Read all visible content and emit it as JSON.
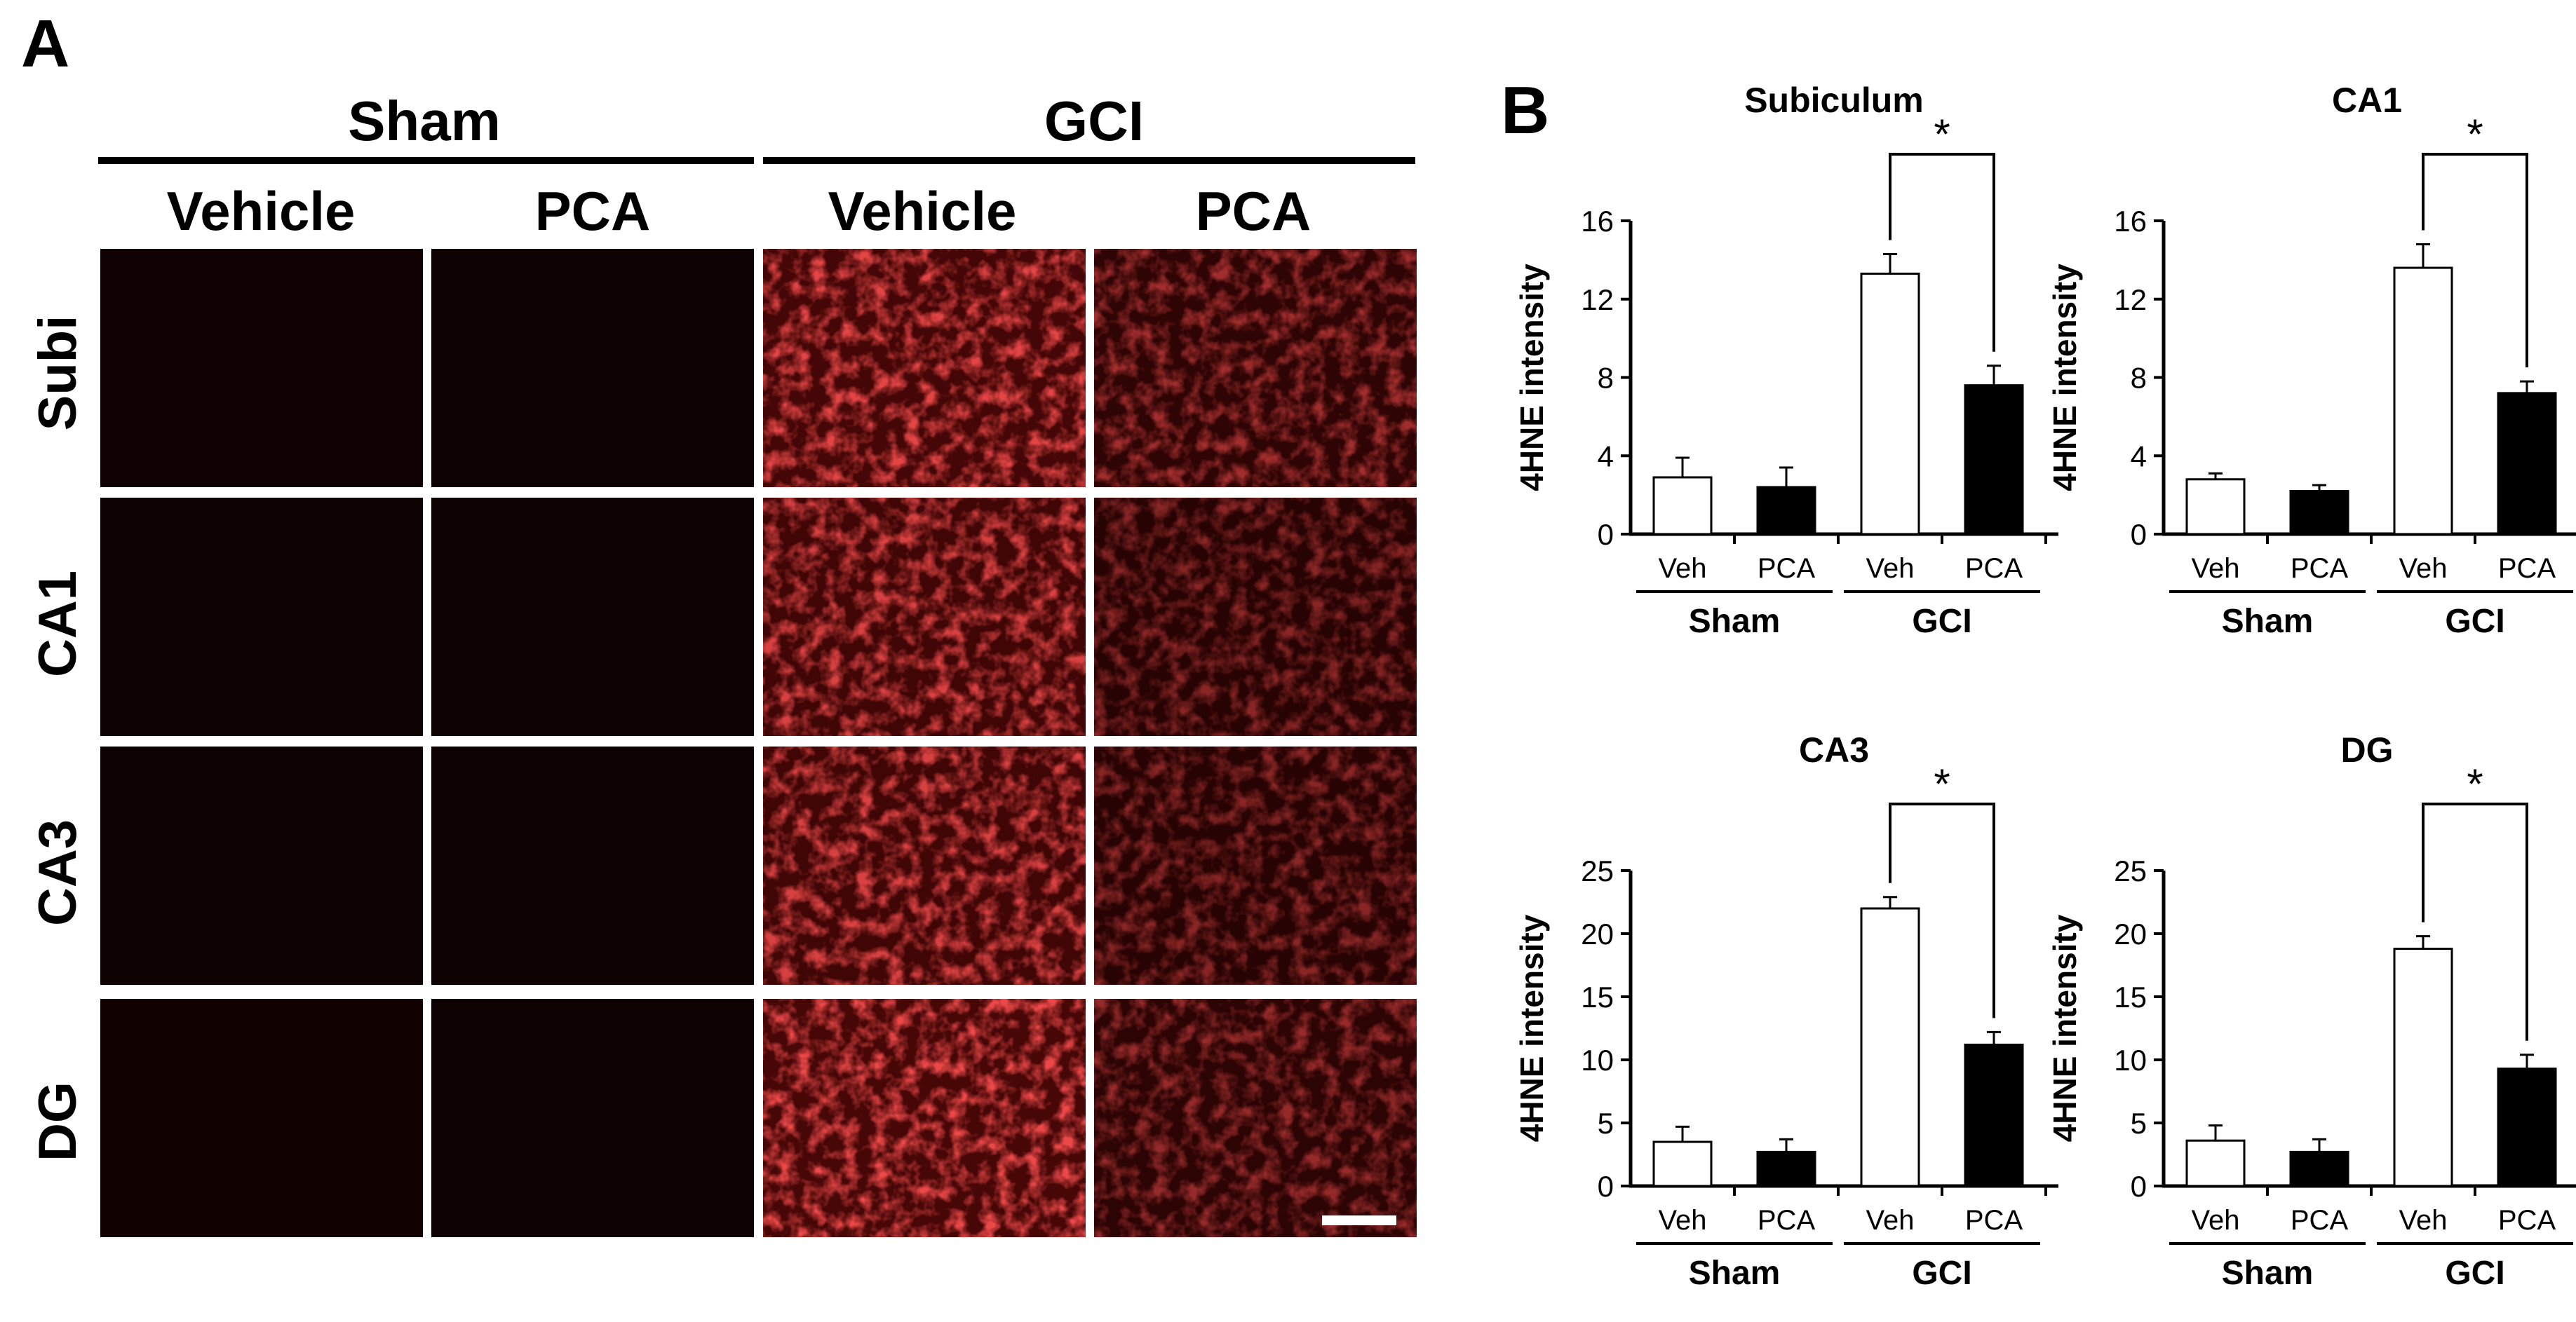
{
  "panel_a": {
    "label": "A",
    "groups": [
      "Sham",
      "GCI"
    ],
    "treatments": [
      "Vehicle",
      "PCA",
      "Vehicle",
      "PCA"
    ],
    "regions": [
      "Subi",
      "CA1",
      "CA3",
      "DG"
    ],
    "panel_background": "#0a0000",
    "stain_color": "#ff1a1a",
    "stain_level": [
      [
        0.04,
        0.03,
        0.85,
        0.55
      ],
      [
        0.03,
        0.03,
        0.8,
        0.45
      ],
      [
        0.03,
        0.03,
        0.8,
        0.45
      ],
      [
        0.05,
        0.03,
        0.9,
        0.5
      ]
    ],
    "scale_bar_color": "#ffffff"
  },
  "panel_b": {
    "label": "B",
    "significance_marker": "*"
  },
  "chart_data": [
    {
      "type": "bar",
      "title": "Subiculum",
      "ylabel": "4HNE intensity",
      "categories": [
        "Veh",
        "PCA",
        "Veh",
        "PCA"
      ],
      "groups": [
        "Sham",
        "GCI"
      ],
      "values": [
        2.9,
        2.4,
        13.3,
        7.6
      ],
      "errors": [
        1.0,
        1.0,
        1.0,
        1.0
      ],
      "bar_colors": [
        "#ffffff",
        "#000000",
        "#ffffff",
        "#000000"
      ],
      "yticks": [
        0,
        4,
        8,
        12,
        16
      ],
      "ylim": [
        0,
        16
      ],
      "significance": "*"
    },
    {
      "type": "bar",
      "title": "CA1",
      "ylabel": "4HNE intensity",
      "categories": [
        "Veh",
        "PCA",
        "Veh",
        "PCA"
      ],
      "groups": [
        "Sham",
        "GCI"
      ],
      "values": [
        2.8,
        2.2,
        13.6,
        7.2
      ],
      "errors": [
        0.3,
        0.3,
        1.2,
        0.6
      ],
      "bar_colors": [
        "#ffffff",
        "#000000",
        "#ffffff",
        "#000000"
      ],
      "yticks": [
        0,
        4,
        8,
        12,
        16
      ],
      "ylim": [
        0,
        16
      ],
      "significance": "*"
    },
    {
      "type": "bar",
      "title": "CA3",
      "ylabel": "4HNE intensity",
      "categories": [
        "Veh",
        "PCA",
        "Veh",
        "PCA"
      ],
      "groups": [
        "Sham",
        "GCI"
      ],
      "values": [
        3.5,
        2.7,
        22.0,
        11.2
      ],
      "errors": [
        1.2,
        1.0,
        0.9,
        1.0
      ],
      "bar_colors": [
        "#ffffff",
        "#000000",
        "#ffffff",
        "#000000"
      ],
      "yticks": [
        0,
        5,
        10,
        15,
        20,
        25
      ],
      "ylim": [
        0,
        25
      ],
      "significance": "*"
    },
    {
      "type": "bar",
      "title": "DG",
      "ylabel": "4HNE intensity",
      "categories": [
        "Veh",
        "PCA",
        "Veh",
        "PCA"
      ],
      "groups": [
        "Sham",
        "GCI"
      ],
      "values": [
        3.6,
        2.7,
        18.8,
        9.3
      ],
      "errors": [
        1.2,
        1.0,
        1.0,
        1.1
      ],
      "bar_colors": [
        "#ffffff",
        "#000000",
        "#ffffff",
        "#000000"
      ],
      "yticks": [
        0,
        5,
        10,
        15,
        20,
        25
      ],
      "ylim": [
        0,
        25
      ],
      "significance": "*"
    }
  ]
}
